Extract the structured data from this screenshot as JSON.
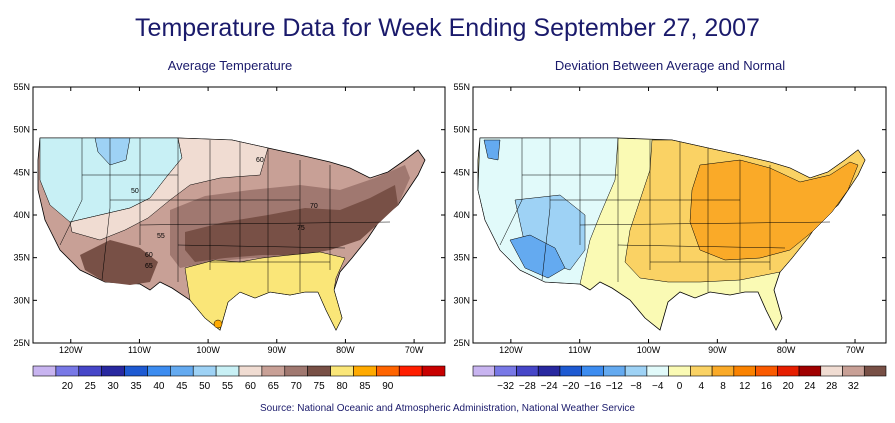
{
  "title": "Temperature Data for Week Ending September 27, 2007",
  "source": "Source:  National Oceanic and Atmospheric Administration, National Weather Service",
  "left_map": {
    "title": "Average Temperature",
    "lat_labels": [
      "55N",
      "50N",
      "45N",
      "40N",
      "35N",
      "30N",
      "25N"
    ],
    "lon_labels": [
      "120W",
      "110W",
      "100W",
      "90W",
      "80W",
      "70W"
    ],
    "contour_labels": [
      "60",
      "50",
      "55",
      "60",
      "65",
      "70",
      "75"
    ],
    "colorbar_values": [
      "20",
      "25",
      "30",
      "35",
      "40",
      "45",
      "50",
      "55",
      "60",
      "65",
      "70",
      "75",
      "80",
      "85",
      "90"
    ],
    "colorbar_colors": [
      "#c8b4f0",
      "#7878e6",
      "#4646c8",
      "#2828a0",
      "#1e5ad2",
      "#3c8cf0",
      "#64aaf0",
      "#9ed2f5",
      "#c8f0f5",
      "#f0dcd2",
      "#c8a096",
      "#a07870",
      "#785046",
      "#fae678",
      "#ffaa00",
      "#ff6400",
      "#ff1e00",
      "#c80000"
    ]
  },
  "right_map": {
    "title": "Deviation Between Average and Normal",
    "lat_labels": [
      "55N",
      "50N",
      "45N",
      "40N",
      "35N",
      "30N",
      "25N"
    ],
    "lon_labels": [
      "120W",
      "110W",
      "100W",
      "90W",
      "80W",
      "70W"
    ],
    "colorbar_values": [
      "−32",
      "−28",
      "−24",
      "−20",
      "−16",
      "−12",
      "−8",
      "−4",
      "0",
      "4",
      "8",
      "12",
      "16",
      "20",
      "24",
      "28",
      "32"
    ],
    "colorbar_colors": [
      "#c8b4f0",
      "#7878e6",
      "#4646c8",
      "#2828a0",
      "#1e5ad2",
      "#3c8cf0",
      "#64aaf0",
      "#9ed2f5",
      "#e1fafa",
      "#fafab4",
      "#fad264",
      "#faaa28",
      "#fa8200",
      "#fa5a00",
      "#e61e00",
      "#a00000",
      "#f0dcd2",
      "#c8a096",
      "#785046"
    ]
  }
}
